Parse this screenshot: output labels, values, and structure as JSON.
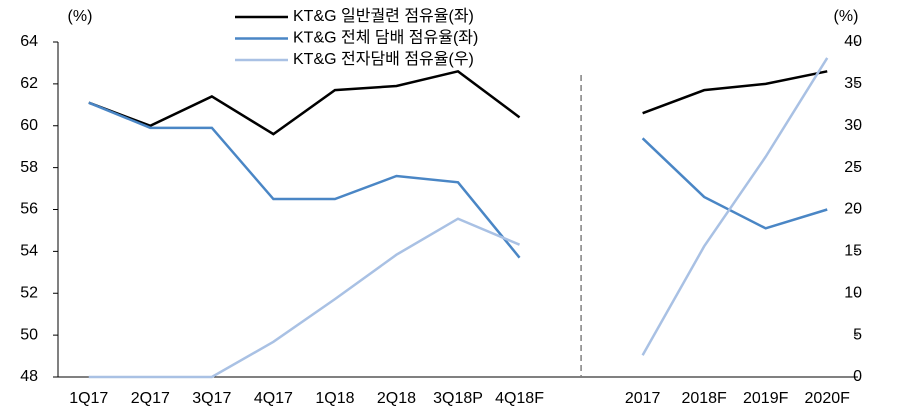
{
  "chart_data": {
    "type": "line",
    "y_label": "(%)",
    "y2_label": "(%)",
    "categories": [
      "1Q17",
      "2Q17",
      "3Q17",
      "4Q17",
      "1Q18",
      "2Q18",
      "3Q18P",
      "4Q18F",
      null,
      "2017",
      "2018F",
      "2019F",
      "2020F"
    ],
    "series": [
      {
        "name": "KT&G 일반궐련 점유율(좌)",
        "color": "#000000",
        "axis": "y",
        "values": [
          61.1,
          60.0,
          61.4,
          59.6,
          61.7,
          61.9,
          62.6,
          60.4,
          null,
          60.6,
          61.7,
          62.0,
          62.6
        ]
      },
      {
        "name": "KT&G 전체 담배 점유율(좌)",
        "color": "#4a86c5",
        "axis": "y",
        "values": [
          61.1,
          59.9,
          59.9,
          56.5,
          56.5,
          57.6,
          57.3,
          53.7,
          null,
          59.4,
          56.6,
          55.1,
          56.0
        ]
      },
      {
        "name": "KT&G 전자담배 점유율(우)",
        "color": "#a9c1e4",
        "axis": "y2",
        "values": [
          0,
          0,
          0,
          4.2,
          9.3,
          14.6,
          18.9,
          15.8,
          null,
          2.6,
          15.6,
          26.3,
          38.1
        ]
      }
    ],
    "ylim": [
      48,
      64
    ],
    "yticks": [
      48,
      50,
      52,
      54,
      56,
      58,
      60,
      62,
      64
    ],
    "y2lim": [
      0,
      40
    ],
    "y2ticks": [
      0,
      5,
      10,
      15,
      20,
      25,
      30,
      35,
      40
    ],
    "grid": false
  }
}
